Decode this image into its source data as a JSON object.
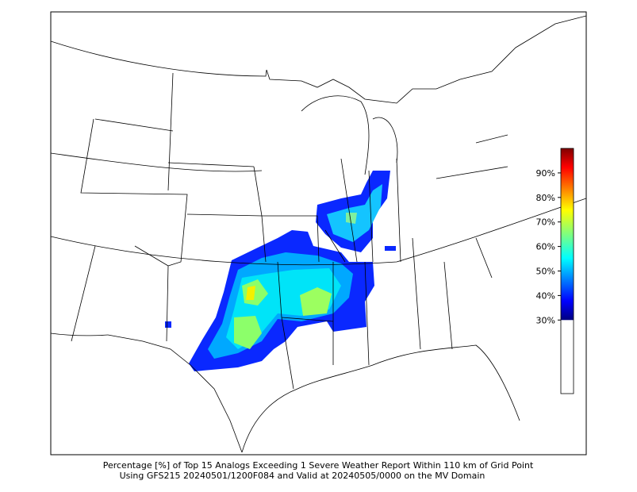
{
  "chart_data": {
    "type": "map",
    "caption": [
      "Percentage [%] of Top 15 Analogs Exceeding 1 Severe Weather Report Within 110 km of Grid Point",
      "Using GFS215 20240501/1200F084 and Valid at 20240505/0000 on the MV Domain"
    ],
    "colorbar": {
      "lim": [
        0,
        100
      ],
      "colored_range": [
        30,
        100
      ],
      "ticks": [
        {
          "value": 30,
          "label": "30%"
        },
        {
          "value": 40,
          "label": "40%"
        },
        {
          "value": 50,
          "label": "50%"
        },
        {
          "value": 60,
          "label": "60%"
        },
        {
          "value": 70,
          "label": "70%"
        },
        {
          "value": 80,
          "label": "80%"
        },
        {
          "value": 90,
          "label": "90%"
        }
      ]
    }
  }
}
